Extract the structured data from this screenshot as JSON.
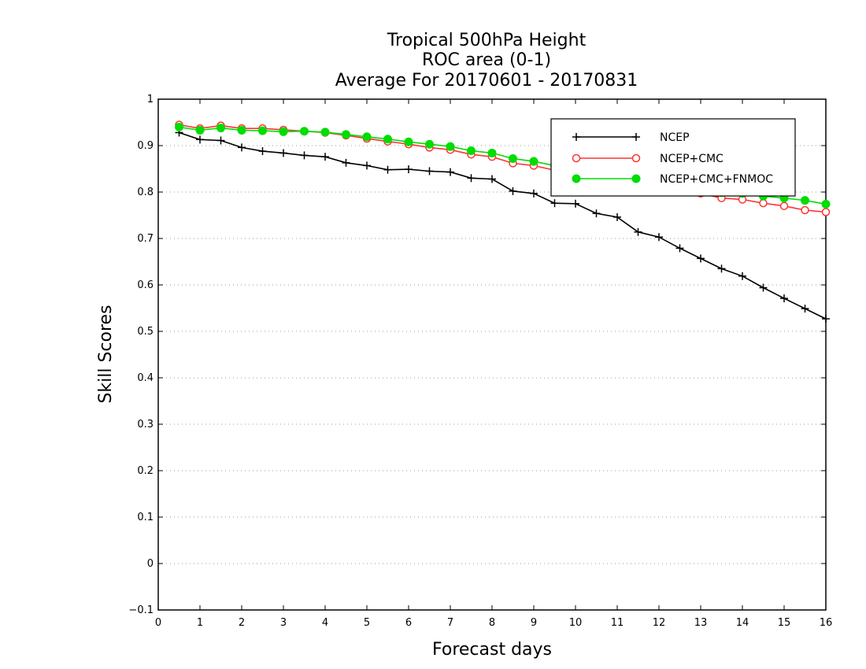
{
  "chart_data": {
    "type": "line",
    "title": [
      "Tropical 500hPa Height",
      "ROC area (0-1)",
      "Average For 20170601 - 20170831"
    ],
    "xlabel": "Forecast days",
    "ylabel": "Skill Scores",
    "xlim": [
      0,
      16
    ],
    "ylim": [
      -0.1,
      1
    ],
    "x_ticks": [
      "0",
      "1",
      "2",
      "3",
      "4",
      "5",
      "6",
      "7",
      "8",
      "9",
      "10",
      "11",
      "12",
      "13",
      "14",
      "15",
      "16"
    ],
    "y_ticks": [
      "−0.1",
      "0",
      "0.1",
      "0.2",
      "0.3",
      "0.4",
      "0.5",
      "0.6",
      "0.7",
      "0.8",
      "0.9",
      "1"
    ],
    "grid": "horizontal-dotted",
    "legend_position": "top-right",
    "x": [
      0.5,
      1,
      1.5,
      2,
      2.5,
      3,
      3.5,
      4,
      4.5,
      5,
      5.5,
      6,
      6.5,
      7,
      7.5,
      8,
      8.5,
      9,
      9.5,
      10,
      10.5,
      11,
      11.5,
      12,
      12.5,
      13,
      13.5,
      14,
      14.5,
      15,
      15.5,
      16
    ],
    "series": [
      {
        "name": "NCEP",
        "color": "#000000",
        "marker": "plus",
        "values": [
          0.928,
          0.913,
          0.911,
          0.896,
          0.888,
          0.884,
          0.879,
          0.876,
          0.863,
          0.857,
          0.848,
          0.849,
          0.845,
          0.843,
          0.83,
          0.828,
          0.802,
          0.797,
          0.776,
          0.775,
          0.754,
          0.746,
          0.714,
          0.703,
          0.679,
          0.657,
          0.635,
          0.619,
          0.594,
          0.571,
          0.549,
          0.527
        ]
      },
      {
        "name": "NCEP+CMC",
        "color": "#ff3333",
        "marker": "open-circle",
        "values": [
          0.945,
          0.937,
          0.943,
          0.937,
          0.937,
          0.934,
          0.931,
          0.928,
          0.922,
          0.915,
          0.909,
          0.903,
          0.896,
          0.891,
          0.881,
          0.876,
          0.862,
          0.857,
          0.847,
          0.839,
          0.829,
          0.822,
          0.812,
          0.806,
          0.8,
          0.797,
          0.787,
          0.784,
          0.776,
          0.77,
          0.761,
          0.757
        ]
      },
      {
        "name": "NCEP+CMC+FNMOC",
        "color": "#00dd00",
        "marker": "filled-circle",
        "values": [
          0.94,
          0.933,
          0.938,
          0.933,
          0.932,
          0.93,
          0.931,
          0.929,
          0.924,
          0.919,
          0.914,
          0.908,
          0.903,
          0.898,
          0.889,
          0.884,
          0.872,
          0.866,
          0.857,
          0.85,
          0.841,
          0.835,
          0.826,
          0.82,
          0.813,
          0.808,
          0.799,
          0.797,
          0.791,
          0.787,
          0.782,
          0.774
        ]
      }
    ]
  }
}
